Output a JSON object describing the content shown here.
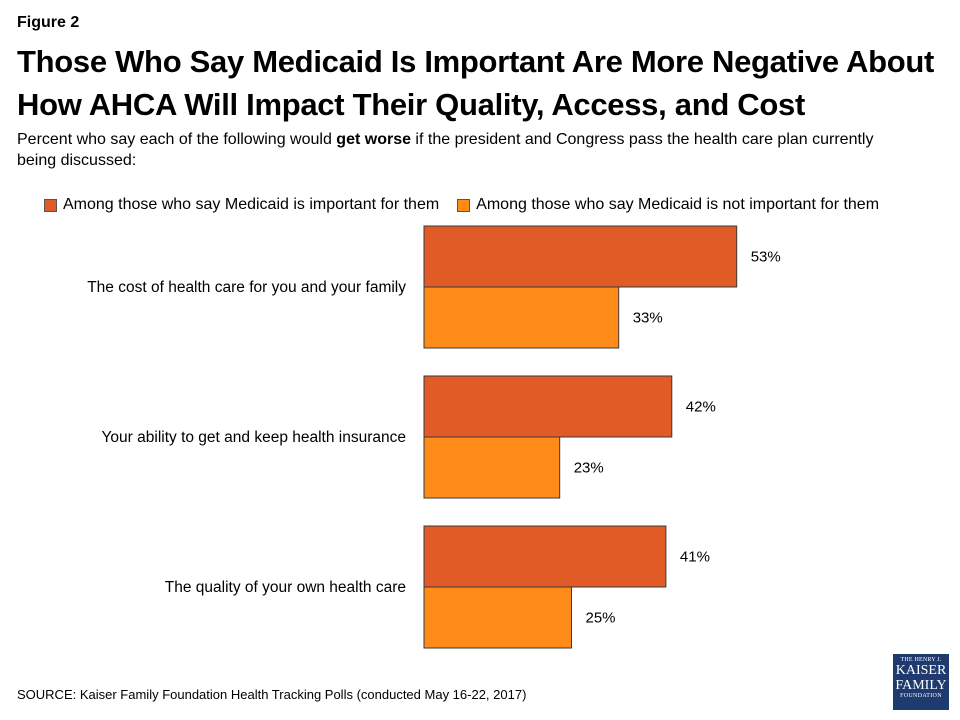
{
  "figure_label": "Figure 2",
  "title": "Those Who Say Medicaid Is Important Are More Negative About How AHCA Will Impact Their Quality, Access, and Cost",
  "subtitle": {
    "before": "Percent who say each of the following would ",
    "bold": "get worse",
    "after": " if the president and Congress pass the health care plan currently being discussed:"
  },
  "source": "SOURCE: Kaiser Family Foundation Health Tracking Polls (conducted May 16-22, 2017)",
  "logo": {
    "line1": "THE HENRY J.",
    "line2": "KAISER",
    "line3": "FAMILY",
    "line4": "FOUNDATION"
  },
  "chart_data": {
    "type": "bar",
    "orientation": "horizontal",
    "categories": [
      "The cost of health care for you and your family",
      "Your ability to get and keep health insurance",
      "The quality of your own health care"
    ],
    "series": [
      {
        "name": "Among those who say Medicaid is important for them",
        "values": [
          53,
          42,
          41
        ],
        "labels": [
          "53%",
          "42%",
          "41%"
        ],
        "color": "#E05B26"
      },
      {
        "name": "Among those who say Medicaid is not important for them",
        "values": [
          33,
          23,
          25
        ],
        "labels": [
          "33%",
          "23%",
          "25%"
        ],
        "color": "#FF8C19"
      }
    ],
    "xlim": [
      0,
      100
    ],
    "grid": false,
    "legend_position": "top"
  }
}
